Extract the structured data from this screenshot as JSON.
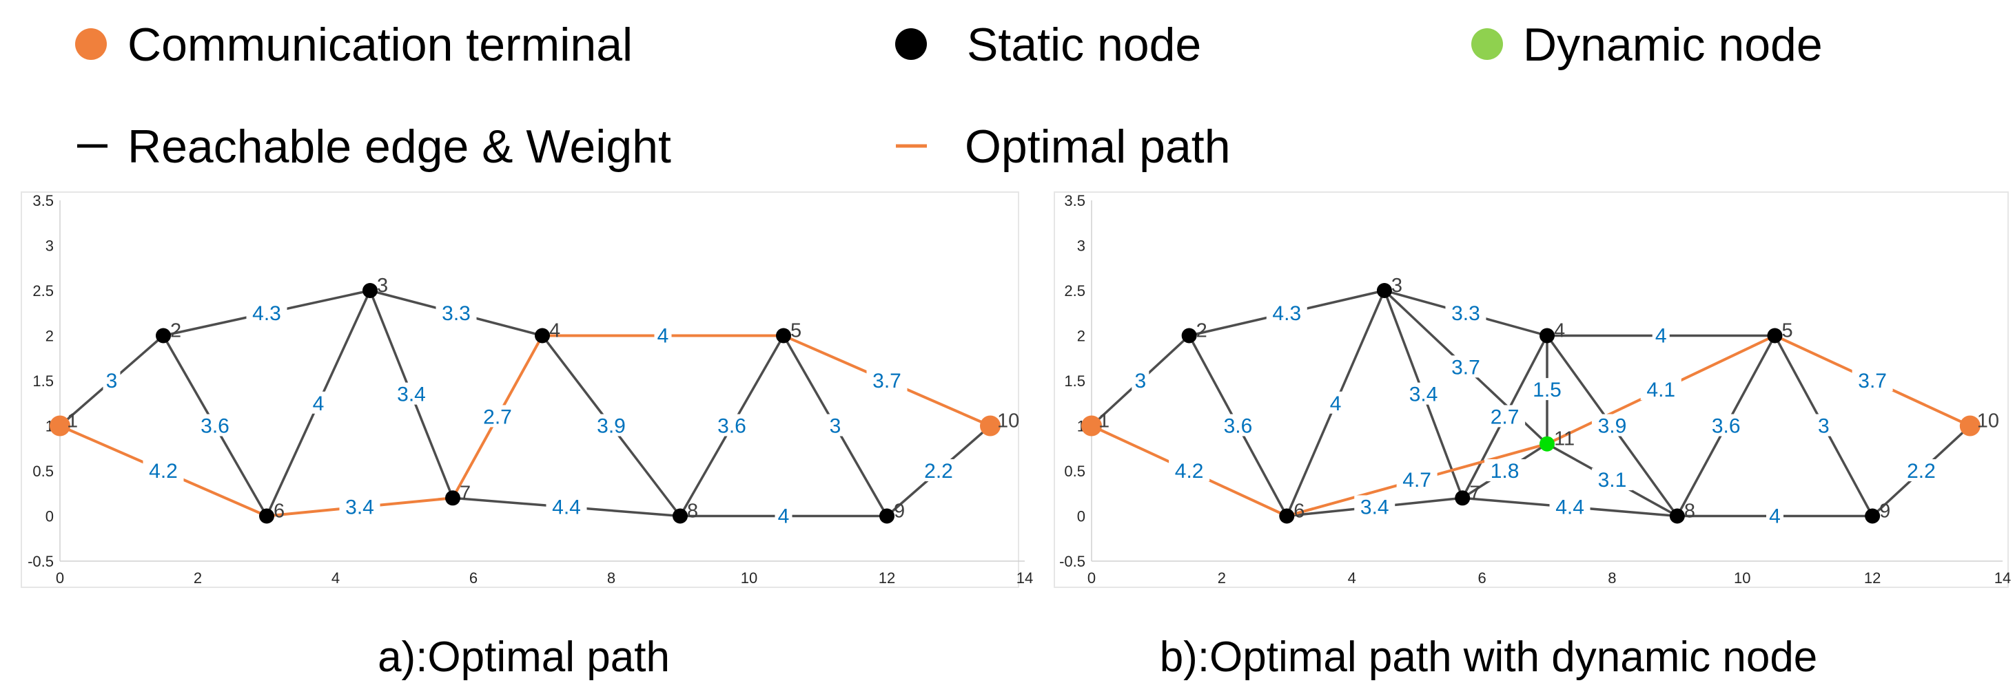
{
  "legend": {
    "items": [
      {
        "label": "Communication terminal",
        "marker": "circle",
        "color": "#F0803C"
      },
      {
        "label": "Static node",
        "marker": "circle",
        "color": "#000000"
      },
      {
        "label": "Dynamic node",
        "marker": "circle",
        "color": "#8FD14F"
      },
      {
        "label": "Reachable edge & Weight",
        "marker": "line",
        "color": "#000000"
      },
      {
        "label": "Optimal path",
        "marker": "line",
        "color": "#F0803C"
      }
    ]
  },
  "colors": {
    "terminal": "#F0803C",
    "static": "#000000",
    "dynamic": "#00E000",
    "edge": "#4D4D4D",
    "path": "#F0803C",
    "weight_label": "#0072BD",
    "axis": "#262626"
  },
  "chart_data": [
    {
      "type": "graph",
      "caption": "a):Optimal path",
      "xlim": [
        0,
        14
      ],
      "ylim": [
        -0.5,
        3.5
      ],
      "xticks": [
        "0",
        "2",
        "4",
        "6",
        "8",
        "10",
        "12",
        "14"
      ],
      "yticks": [
        "-0.5",
        "0",
        "0.5",
        "1",
        "1.5",
        "2",
        "2.5",
        "3",
        "3.5"
      ],
      "nodes": [
        {
          "id": "1",
          "x": 0,
          "y": 1,
          "kind": "terminal"
        },
        {
          "id": "2",
          "x": 1.5,
          "y": 2,
          "kind": "static"
        },
        {
          "id": "3",
          "x": 4.5,
          "y": 2.5,
          "kind": "static"
        },
        {
          "id": "4",
          "x": 7,
          "y": 2,
          "kind": "static"
        },
        {
          "id": "5",
          "x": 10.5,
          "y": 2,
          "kind": "static"
        },
        {
          "id": "6",
          "x": 3,
          "y": 0,
          "kind": "static"
        },
        {
          "id": "7",
          "x": 5.7,
          "y": 0.2,
          "kind": "static"
        },
        {
          "id": "8",
          "x": 9,
          "y": 0,
          "kind": "static"
        },
        {
          "id": "9",
          "x": 12,
          "y": 0,
          "kind": "static"
        },
        {
          "id": "10",
          "x": 13.5,
          "y": 1,
          "kind": "terminal"
        }
      ],
      "edges": [
        {
          "from": "1",
          "to": "2",
          "weight": "3",
          "path": false
        },
        {
          "from": "2",
          "to": "3",
          "weight": "4.3",
          "path": false
        },
        {
          "from": "3",
          "to": "4",
          "weight": "3.3",
          "path": false
        },
        {
          "from": "4",
          "to": "5",
          "weight": "4",
          "path": true
        },
        {
          "from": "5",
          "to": "10",
          "weight": "3.7",
          "path": true
        },
        {
          "from": "2",
          "to": "6",
          "weight": "3.6",
          "path": false
        },
        {
          "from": "3",
          "to": "6",
          "weight": "4",
          "path": false
        },
        {
          "from": "3",
          "to": "7",
          "weight": "3.4",
          "path": false
        },
        {
          "from": "7",
          "to": "4",
          "weight": "2.7",
          "path": true
        },
        {
          "from": "4",
          "to": "8",
          "weight": "3.9",
          "path": false
        },
        {
          "from": "8",
          "to": "5",
          "weight": "3.6",
          "path": false
        },
        {
          "from": "5",
          "to": "9",
          "weight": "3",
          "path": false
        },
        {
          "from": "1",
          "to": "6",
          "weight": "4.2",
          "path": true
        },
        {
          "from": "6",
          "to": "7",
          "weight": "3.4",
          "path": true
        },
        {
          "from": "7",
          "to": "8",
          "weight": "4.4",
          "path": false
        },
        {
          "from": "8",
          "to": "9",
          "weight": "4",
          "path": false
        },
        {
          "from": "9",
          "to": "10",
          "weight": "2.2",
          "path": false
        }
      ]
    },
    {
      "type": "graph",
      "caption": "b):Optimal path with dynamic node",
      "xlim": [
        0,
        14
      ],
      "ylim": [
        -0.5,
        3.5
      ],
      "xticks": [
        "0",
        "2",
        "4",
        "6",
        "8",
        "10",
        "12",
        "14"
      ],
      "yticks": [
        "-0.5",
        "0",
        "0.5",
        "1",
        "1.5",
        "2",
        "2.5",
        "3",
        "3.5"
      ],
      "nodes": [
        {
          "id": "1",
          "x": 0,
          "y": 1,
          "kind": "terminal"
        },
        {
          "id": "2",
          "x": 1.5,
          "y": 2,
          "kind": "static"
        },
        {
          "id": "3",
          "x": 4.5,
          "y": 2.5,
          "kind": "static"
        },
        {
          "id": "4",
          "x": 7,
          "y": 2,
          "kind": "static"
        },
        {
          "id": "5",
          "x": 10.5,
          "y": 2,
          "kind": "static"
        },
        {
          "id": "6",
          "x": 3,
          "y": 0,
          "kind": "static"
        },
        {
          "id": "7",
          "x": 5.7,
          "y": 0.2,
          "kind": "static"
        },
        {
          "id": "8",
          "x": 9,
          "y": 0,
          "kind": "static"
        },
        {
          "id": "9",
          "x": 12,
          "y": 0,
          "kind": "static"
        },
        {
          "id": "10",
          "x": 13.5,
          "y": 1,
          "kind": "terminal"
        },
        {
          "id": "11",
          "x": 7,
          "y": 0.8,
          "kind": "dynamic"
        }
      ],
      "edges": [
        {
          "from": "1",
          "to": "2",
          "weight": "3",
          "path": false
        },
        {
          "from": "2",
          "to": "3",
          "weight": "4.3",
          "path": false
        },
        {
          "from": "3",
          "to": "4",
          "weight": "3.3",
          "path": false
        },
        {
          "from": "4",
          "to": "5",
          "weight": "4",
          "path": false
        },
        {
          "from": "5",
          "to": "10",
          "weight": "3.7",
          "path": true
        },
        {
          "from": "2",
          "to": "6",
          "weight": "3.6",
          "path": false
        },
        {
          "from": "3",
          "to": "6",
          "weight": "4",
          "path": false
        },
        {
          "from": "3",
          "to": "7",
          "weight": "3.4",
          "path": false
        },
        {
          "from": "3",
          "to": "11",
          "weight": "3.7",
          "path": false
        },
        {
          "from": "7",
          "to": "4",
          "weight": "2.7",
          "path": false
        },
        {
          "from": "4",
          "to": "11",
          "weight": "1.5",
          "path": false
        },
        {
          "from": "4",
          "to": "8",
          "weight": "3.9",
          "path": false
        },
        {
          "from": "11",
          "to": "5",
          "weight": "4.1",
          "path": true
        },
        {
          "from": "8",
          "to": "5",
          "weight": "3.6",
          "path": false
        },
        {
          "from": "5",
          "to": "9",
          "weight": "3",
          "path": false
        },
        {
          "from": "1",
          "to": "6",
          "weight": "4.2",
          "path": true
        },
        {
          "from": "6",
          "to": "7",
          "weight": "3.4",
          "path": false
        },
        {
          "from": "6",
          "to": "11",
          "weight": "4.7",
          "path": true
        },
        {
          "from": "7",
          "to": "11",
          "weight": "1.8",
          "path": false
        },
        {
          "from": "11",
          "to": "8",
          "weight": "3.1",
          "path": false
        },
        {
          "from": "7",
          "to": "8",
          "weight": "4.4",
          "path": false
        },
        {
          "from": "8",
          "to": "9",
          "weight": "4",
          "path": false
        },
        {
          "from": "9",
          "to": "10",
          "weight": "2.2",
          "path": false
        }
      ]
    }
  ]
}
